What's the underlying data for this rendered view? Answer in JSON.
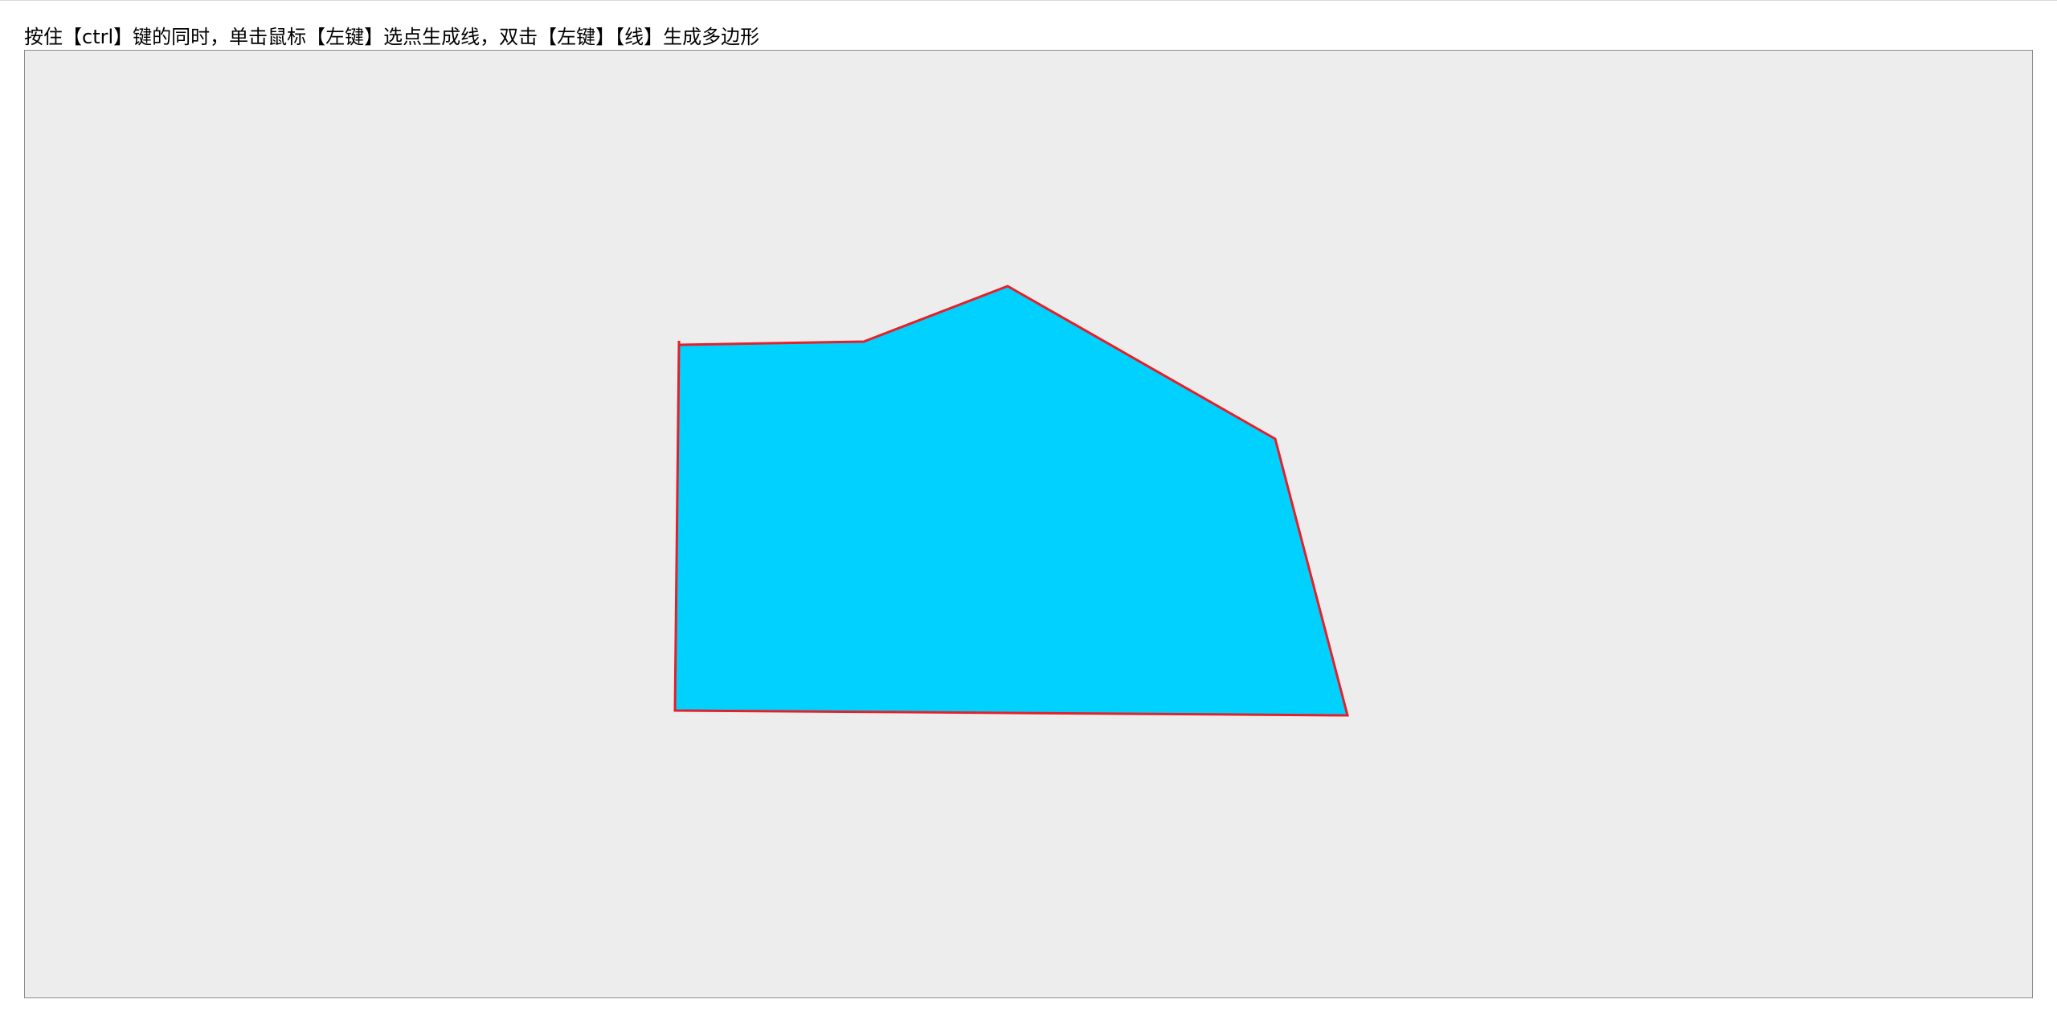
{
  "page": {
    "instruction_text": "按住【ctrl】键的同时，单击鼠标【左键】选点生成线，双击【左键】【线】生成多边形"
  },
  "canvas": {
    "background_color": "#ededed",
    "border_color": "#8c8c8c"
  },
  "polygon": {
    "fill_color": "#00d1ff",
    "stroke_color": "#e4202a"
  }
}
